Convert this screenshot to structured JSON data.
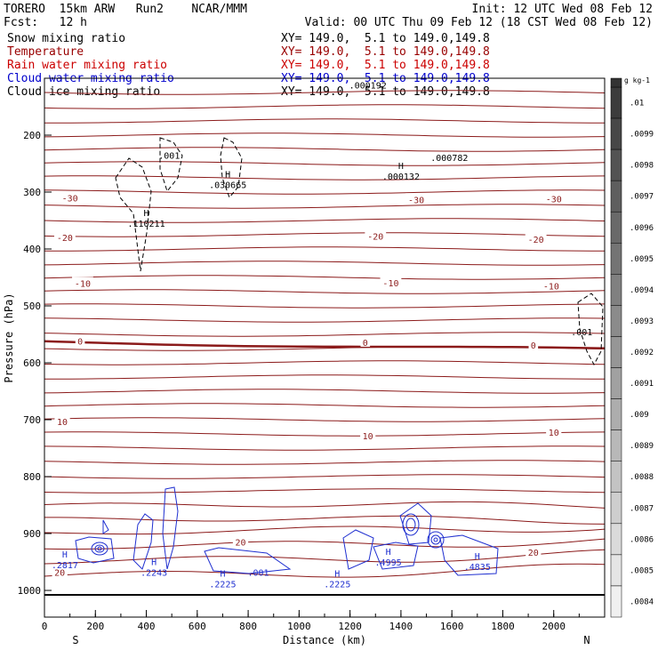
{
  "header": {
    "model": "TORERO  15km ARW   Run2    NCAR/MMM",
    "init": "Init: 12 UTC Wed 08 Feb 12",
    "fcst": "Fcst:   12 h",
    "valid": "Valid: 00 UTC Thu 09 Feb 12 (18 CST Wed 08 Feb 12)",
    "fields": [
      {
        "name": "Snow mixing ratio",
        "xy": "XY= 149.0,  5.1 to 149.0,149.8",
        "color": "#000000"
      },
      {
        "name": "Temperature",
        "xy": "XY= 149.0,  5.1 to 149.0,149.8",
        "color": "#990000"
      },
      {
        "name": "Rain water mixing ratio",
        "xy": "XY= 149.0,  5.1 to 149.0,149.8",
        "color": "#cc0000"
      },
      {
        "name": "Cloud water mixing ratio",
        "xy": "XY= 149.0,  5.1 to 149.0,149.8",
        "color": "#0000cc"
      },
      {
        "name": "Cloud ice mixing ratio",
        "xy": "XY= 149.0,  5.1 to 149.0,149.8",
        "color": "#000000"
      }
    ]
  },
  "chart_data": {
    "type": "contour",
    "xlabel": "Distance (km)",
    "ylabel": "Pressure (hPa)",
    "xlim": [
      0,
      2200
    ],
    "ylim": [
      1050,
      100
    ],
    "x_ticks": [
      0,
      200,
      400,
      600,
      800,
      1000,
      1200,
      1400,
      1600,
      1800,
      2000
    ],
    "y_ticks": [
      200,
      300,
      400,
      500,
      600,
      700,
      800,
      900,
      1000
    ],
    "x_end_labels": {
      "left": "S",
      "right": "N"
    },
    "temperature_contours": {
      "color": "#8b1a1a",
      "labels": [
        {
          "text": "-30",
          "x": 100,
          "p": 310
        },
        {
          "text": "-30",
          "x": 1460,
          "p": 313
        },
        {
          "text": "-30",
          "x": 2000,
          "p": 312
        },
        {
          "text": "-20",
          "x": 80,
          "p": 380
        },
        {
          "text": "-20",
          "x": 1300,
          "p": 377
        },
        {
          "text": "-20",
          "x": 1930,
          "p": 383
        },
        {
          "text": "-10",
          "x": 150,
          "p": 460
        },
        {
          "text": "-10",
          "x": 1360,
          "p": 459
        },
        {
          "text": "-10",
          "x": 1990,
          "p": 465
        },
        {
          "text": "0",
          "x": 140,
          "p": 562
        },
        {
          "text": "0",
          "x": 1260,
          "p": 564
        },
        {
          "text": "0",
          "x": 1920,
          "p": 569
        },
        {
          "text": "10",
          "x": 70,
          "p": 703
        },
        {
          "text": "10",
          "x": 1270,
          "p": 728
        },
        {
          "text": "10",
          "x": 2000,
          "p": 722
        },
        {
          "text": "20",
          "x": 770,
          "p": 915
        },
        {
          "text": "20",
          "x": 1920,
          "p": 933
        },
        {
          "text": "20",
          "x": 60,
          "p": 968
        }
      ]
    },
    "maxima_labels": [
      {
        "text": ".001",
        "x": 490,
        "p": 235,
        "mark": ""
      },
      {
        "text": ".030665",
        "x": 720,
        "p": 287,
        "mark": "H"
      },
      {
        "text": ".110211",
        "x": 400,
        "p": 355,
        "mark": "H"
      },
      {
        "text": ".000132",
        "x": 1400,
        "p": 272,
        "mark": "H"
      },
      {
        "text": ".000192",
        "x": 1270,
        "p": 112,
        "mark": ""
      },
      {
        "text": ".000782",
        "x": 1590,
        "p": 239,
        "mark": ""
      },
      {
        "text": ".001",
        "x": 2110,
        "p": 545,
        "mark": ""
      },
      {
        "text": ".2817",
        "x": 80,
        "p": 955,
        "mark": "H"
      },
      {
        "text": ".2243",
        "x": 430,
        "p": 968,
        "mark": "H"
      },
      {
        "text": ".2225",
        "x": 700,
        "p": 988,
        "mark": "H"
      },
      {
        "text": ".001",
        "x": 840,
        "p": 968,
        "mark": ""
      },
      {
        "text": ".2225",
        "x": 1150,
        "p": 988,
        "mark": "H"
      },
      {
        "text": ".4995",
        "x": 1350,
        "p": 950,
        "mark": "H"
      },
      {
        "text": ".4835",
        "x": 1700,
        "p": 958,
        "mark": "H"
      }
    ],
    "colorbar": {
      "unit": "g kg-1",
      "ticks": [
        ".01",
        ".0099",
        ".0098",
        ".0097",
        ".0096",
        ".0095",
        ".0094",
        ".0093",
        ".0092",
        ".0091",
        ".009",
        ".0089",
        ".0088",
        ".0087",
        ".0086",
        ".0085",
        ".0084"
      ]
    }
  }
}
